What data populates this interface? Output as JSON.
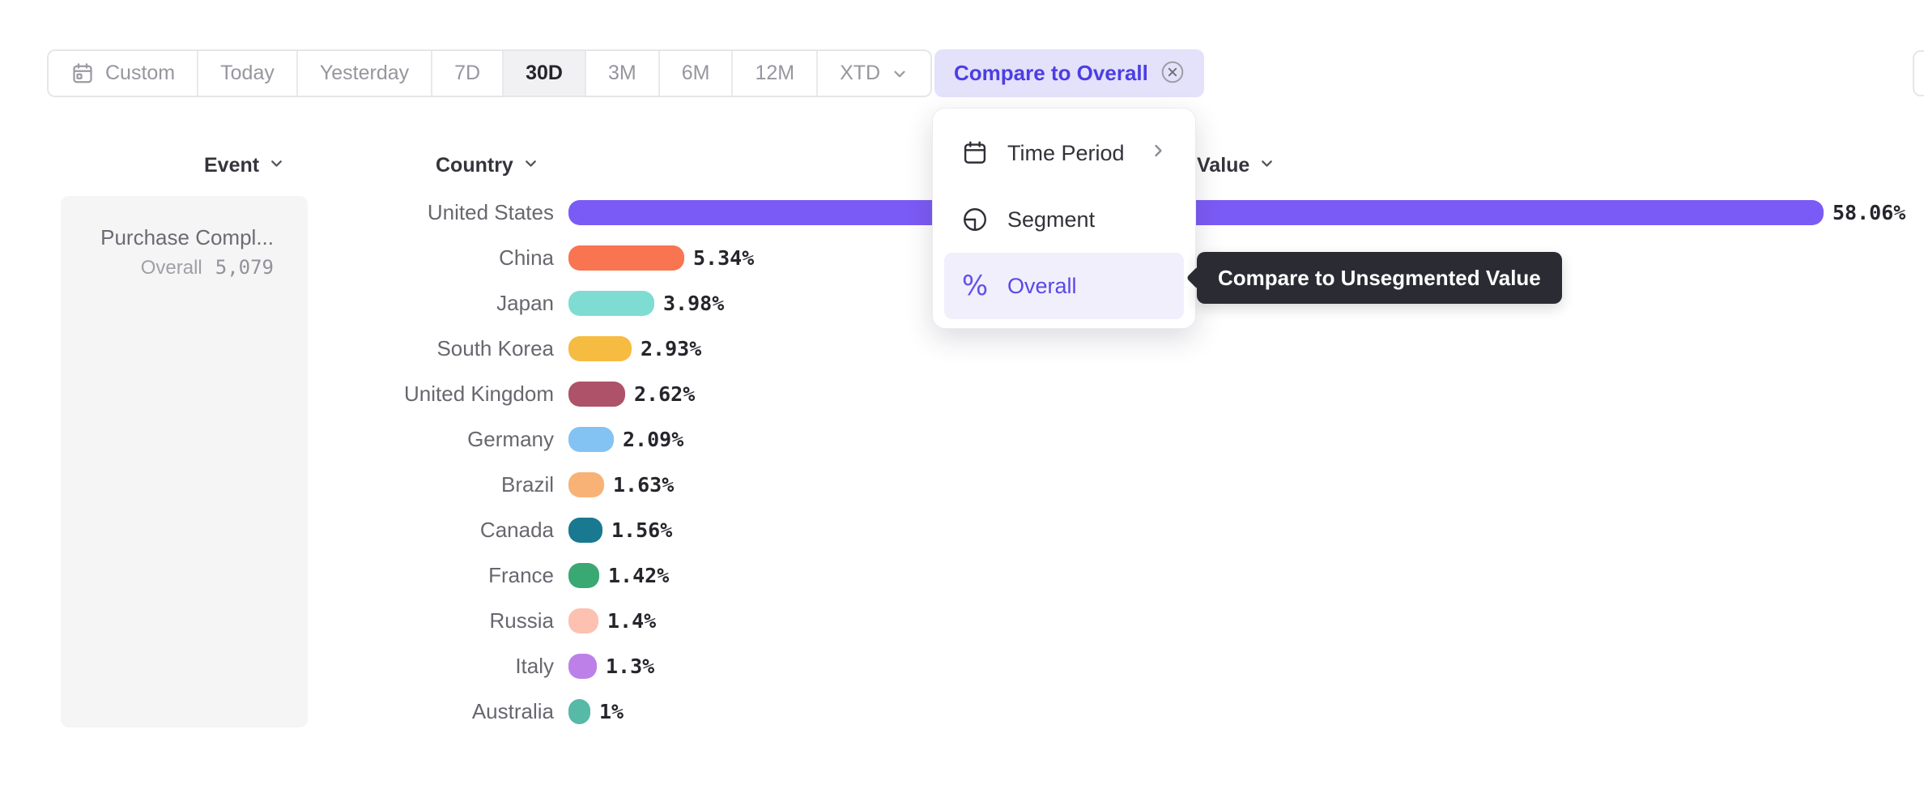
{
  "toolbar": {
    "items": [
      {
        "label": "Custom",
        "icon": "calendar",
        "selected": false
      },
      {
        "label": "Today",
        "selected": false
      },
      {
        "label": "Yesterday",
        "selected": false
      },
      {
        "label": "7D",
        "selected": false
      },
      {
        "label": "30D",
        "selected": true
      },
      {
        "label": "3M",
        "selected": false
      },
      {
        "label": "6M",
        "selected": false
      },
      {
        "label": "12M",
        "selected": false
      },
      {
        "label": "XTD",
        "chevron": true,
        "selected": false
      }
    ]
  },
  "compare_chip": {
    "label": "Compare to Overall",
    "background": "#e4e1fb",
    "text_color": "#4c3ee3"
  },
  "columns": {
    "event": "Event",
    "country": "Country",
    "value": "Value"
  },
  "event_panel": {
    "name": "Purchase Compl...",
    "overall_label": "Overall",
    "overall_value": "5,079"
  },
  "menu": {
    "items": [
      {
        "label": "Time Period",
        "icon": "calendar-icon",
        "has_submenu": true,
        "selected": false
      },
      {
        "label": "Segment",
        "icon": "segment-icon",
        "selected": false
      },
      {
        "label": "Overall",
        "icon": "percent-icon",
        "selected": true
      }
    ],
    "selected_background": "#f1effb",
    "selected_text_color": "#5a48e8"
  },
  "tooltip": {
    "text": "Compare to Unsegmented Value",
    "background": "#2b2b33"
  },
  "chart_data": {
    "type": "bar",
    "orientation": "horizontal",
    "title": "",
    "xlabel": "Value",
    "ylabel": "Country",
    "categories": [
      "United States",
      "China",
      "Japan",
      "South Korea",
      "United Kingdom",
      "Germany",
      "Brazil",
      "Canada",
      "France",
      "Russia",
      "Italy",
      "Australia"
    ],
    "values": [
      58.06,
      5.34,
      3.98,
      2.93,
      2.62,
      2.09,
      1.63,
      1.56,
      1.42,
      1.4,
      1.3,
      1
    ],
    "value_labels": [
      "58.06%",
      "5.34%",
      "3.98%",
      "2.93%",
      "2.62%",
      "2.09%",
      "1.63%",
      "1.56%",
      "1.42%",
      "1.4%",
      "1.3%",
      "1%"
    ],
    "colors": [
      "#7b5bf5",
      "#f97450",
      "#7fdcd2",
      "#f6bb41",
      "#ae5269",
      "#83c3f4",
      "#f9b276",
      "#187991",
      "#3aa873",
      "#fcc1b1",
      "#bd80e9",
      "#57b9a8"
    ],
    "xlim": [
      0,
      60
    ],
    "unit": "%",
    "grid": false,
    "legend": "none",
    "event": {
      "name": "Purchase Compl...",
      "overall_label": "Overall",
      "overall_value": "5,079"
    }
  }
}
